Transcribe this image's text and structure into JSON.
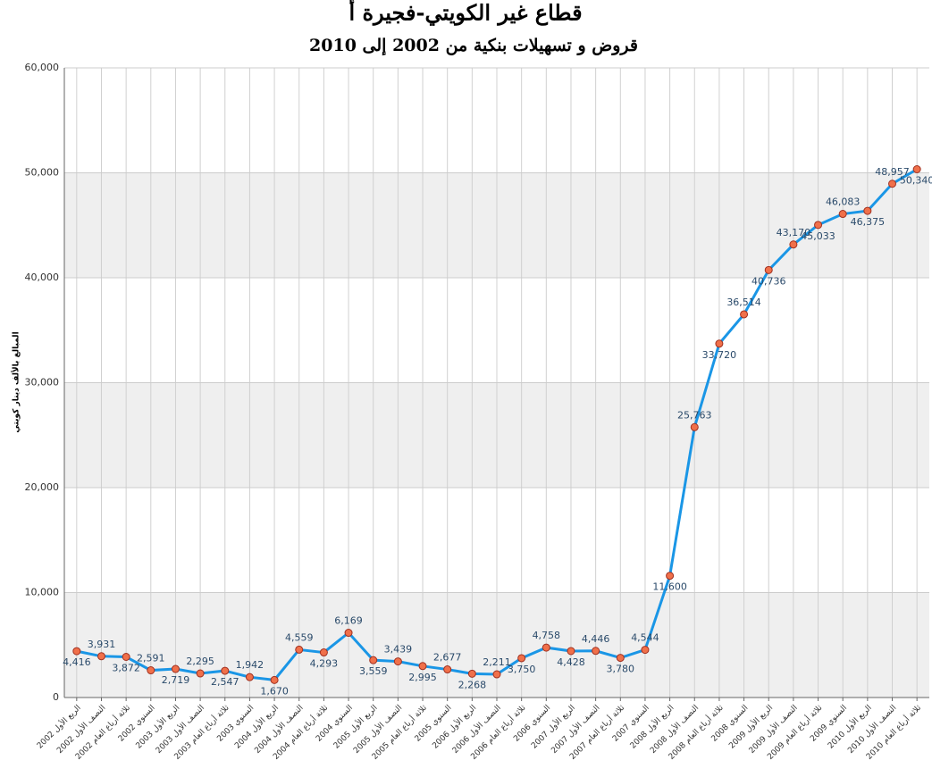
{
  "chart_data": {
    "type": "line",
    "title": "قطاع غير الكويتي-فجيرة أ",
    "subtitle": "قروض و تسهيلات بنكية من 2002 إلى 2010",
    "y_label": "المبالغ بالألف دينار كويتي",
    "categories": [
      "الربع الأول 2002",
      "النصف الأول 2002",
      "ثلاثة أرباع العام 2002",
      "السنوي 2002",
      "الربع الأول 2003",
      "النصف الأول 2003",
      "ثلاثة أرباع العام 2003",
      "السنوي 2003",
      "الربع الأول 2004",
      "النصف الأول 2004",
      "ثلاثة أرباع العام 2004",
      "السنوي 2004",
      "الربع الأول 2005",
      "النصف الأول 2005",
      "ثلاثة أرباع العام 2005",
      "السنوي 2005",
      "الربع الأول 2006",
      "النصف الأول 2006",
      "ثلاثة أرباع العام 2006",
      "السنوي 2006",
      "الربع الأول 2007",
      "النصف الأول 2007",
      "ثلاثة أرباع العام 2007",
      "السنوي 2007",
      "الربع الأول 2008",
      "النصف الأول 2008",
      "ثلاثة أرباع العام 2008",
      "السنوي 2008",
      "الربع الأول 2009",
      "النصف الأول 2009",
      "ثلاثة أرباع العام 2009",
      "السنوي 2009",
      "الربع الأول 2010",
      "النصف الأول 2010",
      "ثلاثة أرباع العام 2010"
    ],
    "series": [
      {
        "color": "#1a96e6",
        "marker_color": "#f0704a",
        "values": [
          4416,
          3931,
          3872,
          2591,
          2719,
          2295,
          2547,
          1942,
          1670,
          4559,
          4293,
          6169,
          3559,
          3439,
          2995,
          2677,
          2268,
          2211,
          3750,
          4758,
          4428,
          4446,
          3780,
          4544,
          11600,
          25763,
          33720,
          36514,
          40736,
          43170,
          45033,
          46083,
          46375,
          48957,
          50340
        ],
        "value_labels": [
          "4,416",
          "3,931",
          "3,872",
          "2,591",
          "2,719",
          "2,295",
          "2,547",
          "1,942",
          "1,670",
          "4,559",
          "4,293",
          "6,169",
          "3,559",
          "3,439",
          "2,995",
          "2,677",
          "2,268",
          "2,211",
          "3,750",
          "4,758",
          "4,428",
          "4,446",
          "3,780",
          "4,544",
          "11,600",
          "25,763",
          "33,720",
          "36,514",
          "40,736",
          "43,170",
          "45,033",
          "46,083",
          "46,375",
          "48,957",
          "50,340"
        ]
      }
    ],
    "ylim": [
      0,
      60000
    ],
    "yticks": [
      0,
      {
        "value": 10000,
        "label": "10,000"
      },
      {
        "value": 20000,
        "label": "20,000"
      },
      {
        "value": 30000,
        "label": "30,000"
      },
      {
        "value": 40000,
        "label": "40,000"
      },
      {
        "value": 50000,
        "label": "50,000"
      },
      {
        "value": 60000,
        "label": "60,000"
      }
    ],
    "grid": true
  }
}
